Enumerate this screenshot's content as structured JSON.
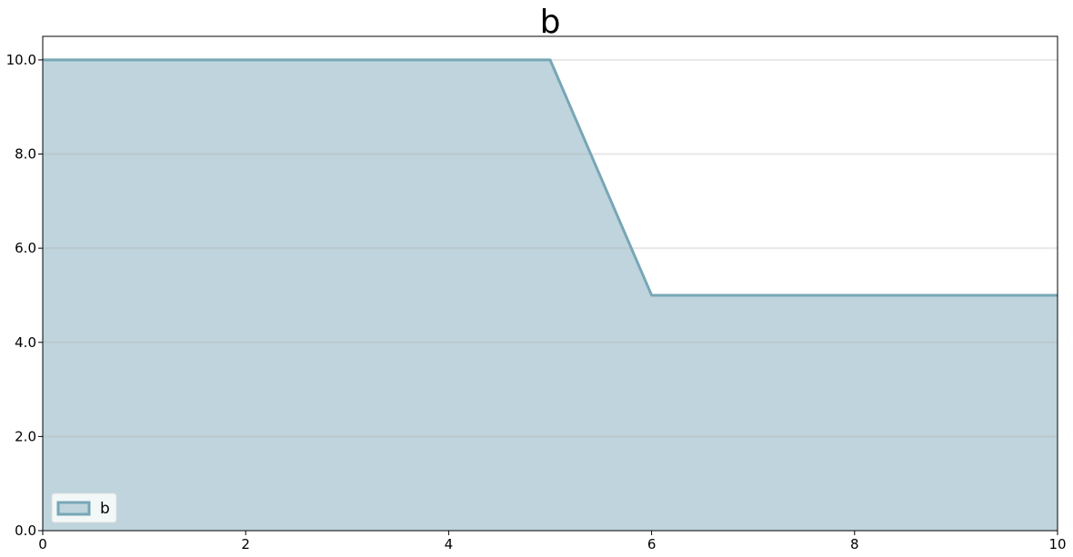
{
  "chart_data": {
    "type": "area",
    "title": "b",
    "xlabel": "",
    "ylabel": "",
    "xlim": [
      0,
      10
    ],
    "ylim": [
      0,
      10.5
    ],
    "x_ticks": [
      0,
      2,
      4,
      6,
      8,
      10
    ],
    "x_tick_labels": [
      "0",
      "2",
      "4",
      "6",
      "8",
      "10"
    ],
    "y_ticks": [
      0,
      2,
      4,
      6,
      8,
      10
    ],
    "y_tick_labels": [
      "0.0",
      "2.0",
      "4.0",
      "6.0",
      "8.0",
      "10.0"
    ],
    "grid": "horizontal",
    "legend_position": "bottom-left",
    "series": [
      {
        "name": "b",
        "x": [
          0,
          1,
          2,
          3,
          4,
          5,
          6,
          7,
          8,
          9,
          10
        ],
        "values": [
          10,
          10,
          10,
          10,
          10,
          10,
          5,
          5,
          5,
          5,
          5
        ],
        "fill_color": "#bfd4dc",
        "line_color": "#77a6b6"
      }
    ]
  }
}
